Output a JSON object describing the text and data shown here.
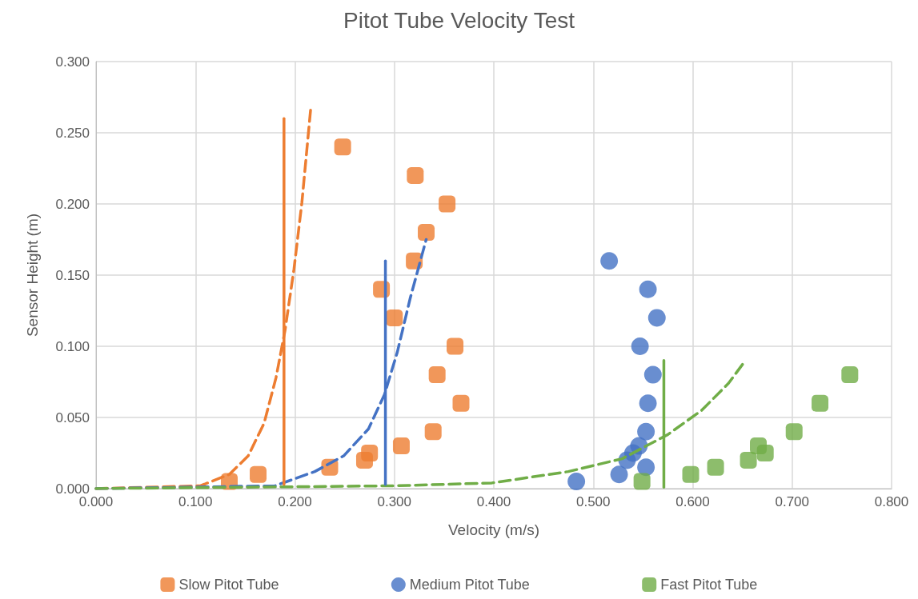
{
  "chart_data": {
    "type": "scatter",
    "title": "Pitot Tube Velocity Test",
    "xlabel": "Velocity (m/s)",
    "ylabel": "Sensor Height (m)",
    "xlim": [
      0,
      0.8
    ],
    "ylim": [
      0,
      0.3
    ],
    "xticks": [
      {
        "value": 0,
        "label": "0.000"
      },
      {
        "value": 0.1,
        "label": "0.100"
      },
      {
        "value": 0.2,
        "label": "0.200"
      },
      {
        "value": 0.3,
        "label": "0.300"
      },
      {
        "value": 0.4,
        "label": "0.400"
      },
      {
        "value": 0.5,
        "label": "0.500"
      },
      {
        "value": 0.6,
        "label": "0.600"
      },
      {
        "value": 0.7,
        "label": "0.700"
      },
      {
        "value": 0.8,
        "label": "0.800"
      }
    ],
    "yticks": [
      {
        "value": 0,
        "label": "0.000"
      },
      {
        "value": 0.05,
        "label": "0.050"
      },
      {
        "value": 0.1,
        "label": "0.100"
      },
      {
        "value": 0.15,
        "label": "0.150"
      },
      {
        "value": 0.2,
        "label": "0.200"
      },
      {
        "value": 0.25,
        "label": "0.250"
      },
      {
        "value": 0.3,
        "label": "0.300"
      }
    ],
    "grid": true,
    "legend": "bottom",
    "series": [
      {
        "name": "Slow Pitot Tube",
        "color": "#ed7d31",
        "marker": "square",
        "x": [
          0.134,
          0.163,
          0.235,
          0.27,
          0.275,
          0.307,
          0.339,
          0.367,
          0.343,
          0.361,
          0.3,
          0.287,
          0.32,
          0.332,
          0.353,
          0.321,
          0.248
        ],
        "values": [
          0.005,
          0.01,
          0.015,
          0.02,
          0.025,
          0.03,
          0.04,
          0.06,
          0.08,
          0.1,
          0.12,
          0.14,
          0.16,
          0.18,
          0.2,
          0.22,
          0.24
        ]
      },
      {
        "name": "Medium Pitot Tube",
        "color": "#4472c4",
        "marker": "circle",
        "x": [
          0.483,
          0.526,
          0.553,
          0.534,
          0.54,
          0.546,
          0.553,
          0.555,
          0.56,
          0.547,
          0.564,
          0.555,
          0.516
        ],
        "values": [
          0.005,
          0.01,
          0.015,
          0.02,
          0.025,
          0.03,
          0.04,
          0.06,
          0.08,
          0.1,
          0.12,
          0.14,
          0.16
        ]
      },
      {
        "name": "Fast Pitot Tube",
        "color": "#70ad47",
        "marker": "square",
        "x": [
          0.549,
          0.598,
          0.623,
          0.656,
          0.673,
          0.666,
          0.702,
          0.728,
          0.758
        ],
        "values": [
          0.005,
          0.01,
          0.015,
          0.02,
          0.025,
          0.03,
          0.04,
          0.06,
          0.08
        ]
      },
      {
        "type": "line",
        "color": "#ed7d31",
        "line_style": "dashed",
        "marker": "none",
        "x": [
          0,
          0.105,
          0.134,
          0.153,
          0.169,
          0.181,
          0.19,
          0.199,
          0.207,
          0.216
        ],
        "values": [
          0,
          0.002,
          0.01,
          0.023,
          0.046,
          0.078,
          0.111,
          0.154,
          0.201,
          0.268
        ]
      },
      {
        "type": "line",
        "color": "#4472c4",
        "line_style": "dashed",
        "marker": "none",
        "x": [
          0,
          0.18,
          0.22,
          0.249,
          0.274,
          0.29,
          0.303,
          0.316,
          0.332
        ],
        "values": [
          0,
          0.002,
          0.012,
          0.023,
          0.042,
          0.066,
          0.096,
          0.134,
          0.175
        ]
      },
      {
        "type": "line",
        "color": "#70ad47",
        "line_style": "dashed",
        "marker": "none",
        "x": [
          0,
          0.3,
          0.398,
          0.475,
          0.529,
          0.575,
          0.609,
          0.636,
          0.653
        ],
        "values": [
          0,
          0.002,
          0.004,
          0.012,
          0.021,
          0.038,
          0.055,
          0.074,
          0.09
        ]
      },
      {
        "type": "line",
        "color": "#ed7d31",
        "line_style": "solid",
        "marker": "none",
        "x": [
          0.189,
          0.189
        ],
        "values": [
          0.003,
          0.26
        ]
      },
      {
        "type": "line",
        "color": "#4472c4",
        "line_style": "solid",
        "marker": "none",
        "x": [
          0.291,
          0.291
        ],
        "values": [
          0.003,
          0.16
        ]
      },
      {
        "type": "line",
        "color": "#70ad47",
        "line_style": "solid",
        "marker": "none",
        "x": [
          0.571,
          0.571
        ],
        "values": [
          0.001,
          0.09
        ]
      }
    ]
  }
}
